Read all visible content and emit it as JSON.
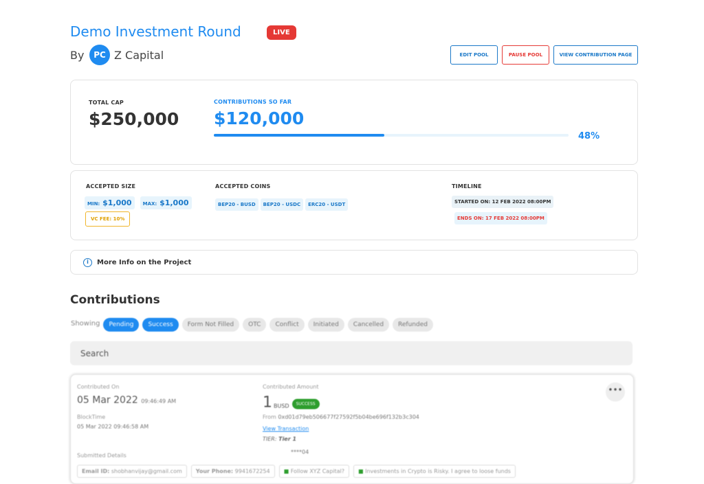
{
  "header": {
    "title": "Demo Investment Round",
    "badge": "LIVE",
    "by": "By",
    "avatar": "PC",
    "org": "Z Capital",
    "buttons": [
      "EDIT POOL",
      "PAUSE POOL",
      "VIEW CONTRIBUTION PAGE"
    ]
  },
  "summary": {
    "total_cap_label": "TOTAL CAP",
    "total_cap": "$250,000",
    "contributions_label": "CONTRIBUTIONS SO FAR",
    "contributions": "$120,000",
    "progress": {
      "value": 48,
      "label": "48%"
    }
  },
  "details": {
    "accepted_size_label": "ACCEPTED SIZE",
    "min_label": "MIN:",
    "min": "$1,000",
    "max_label": "MAX:",
    "max": "$1,000",
    "vc_fee": "VC FEE: 10%",
    "accepted_coins_label": "ACCEPTED COINS",
    "coins": [
      "BEP20 - BUSD",
      "BEP20 - USDC",
      "ERC20 - USDT"
    ],
    "timeline_label": "TIMELINE",
    "started": "STARTED ON: 12 FEB 2022 08:00PM",
    "ends": "ENDS ON: 17 FEB 2022 08:00PM"
  },
  "more_info": "More Info on the Project",
  "contributions": {
    "title": "Contributions",
    "showing": "Showing",
    "filters": [
      {
        "label": "Pending",
        "active": true
      },
      {
        "label": "Success",
        "active": true
      },
      {
        "label": "Form Not Filled",
        "active": false
      },
      {
        "label": "OTC",
        "active": false
      },
      {
        "label": "Conflict",
        "active": false
      },
      {
        "label": "Initiated",
        "active": false
      },
      {
        "label": "Cancelled",
        "active": false
      },
      {
        "label": "Refunded",
        "active": false
      }
    ],
    "search": "Search"
  },
  "card": {
    "contributed_on_label": "Contributed On",
    "date": "05 Mar 2022",
    "time": "09:46:49 AM",
    "blocktime_label": "BlockTime",
    "blocktime": "05 Mar 2022 09:46:58 AM",
    "amount_label": "Contributed Amount",
    "amount": "1",
    "currency": "BUSD",
    "status": "SUCCESS",
    "from_label": "From",
    "from": "0xd01d79eb506677f27592f5b04be696f132b3c304",
    "view_tx": "View Transaction",
    "tier_label": "TIER:",
    "tier": "Tier 1",
    "submitted_label": "Submitted Details",
    "masked": "****04",
    "fields": [
      {
        "label": "Email ID:",
        "value": "shobhanvijay@gmail.com"
      },
      {
        "label": "Your Phone:",
        "value": "9941672254"
      },
      {
        "label": "Follow XYZ Capital?"
      },
      {
        "label": "Investments in Crypto is Risky. I agree to loose funds"
      }
    ]
  }
}
